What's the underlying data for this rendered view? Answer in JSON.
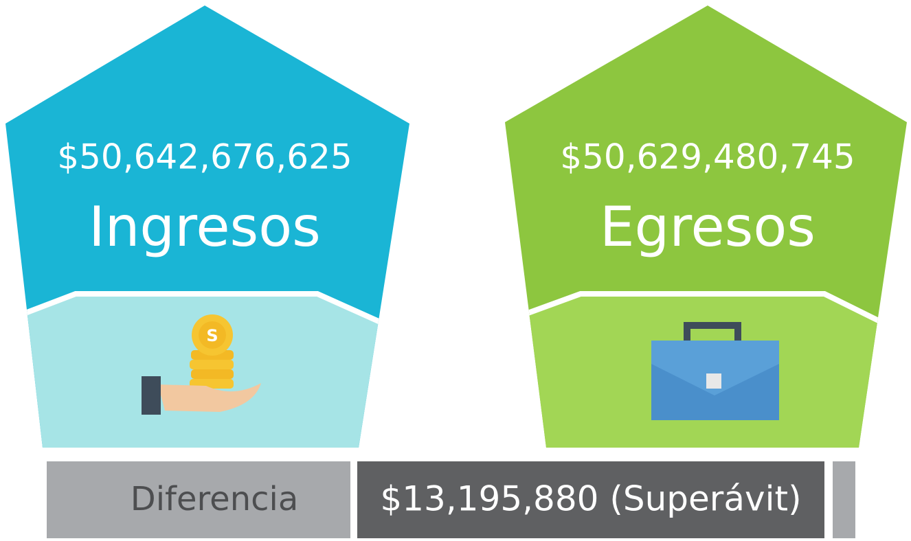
{
  "ingresos": {
    "amount": "$50,642,676,625",
    "label": "Ingresos"
  },
  "egresos": {
    "amount": "$50,629,480,745",
    "label": "Egresos"
  },
  "diferencia": {
    "label": "Diferencia",
    "value": "$13,195,880 (Superávit)"
  }
}
